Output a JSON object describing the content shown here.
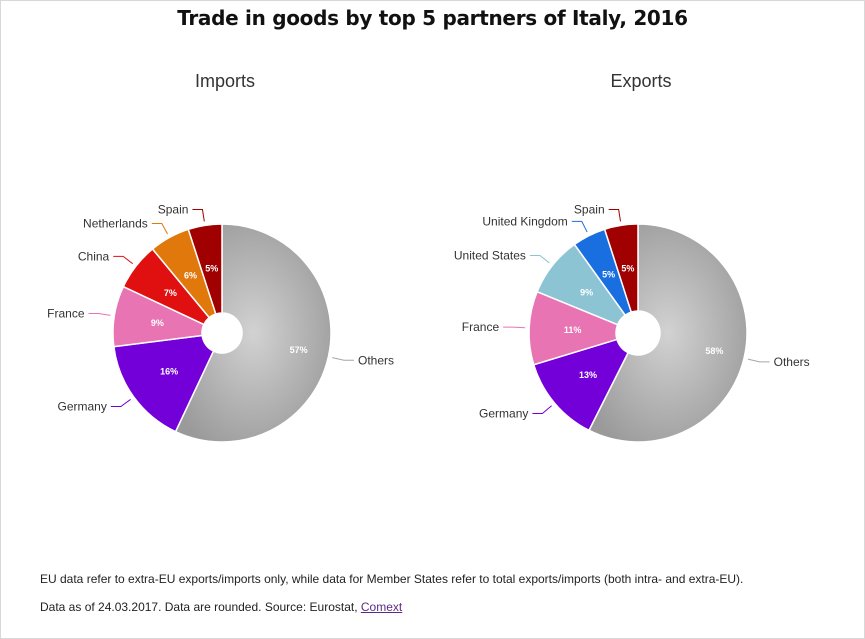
{
  "title": "Trade in goods by top 5 partners of Italy, 2016",
  "notes": {
    "line1": "EU data refer to extra-EU exports/imports only, while data for Member States refer to total exports/imports (both intra- and extra-EU).",
    "line2_prefix": "Data as of 24.03.2017. Data are rounded. Source: Eurostat, ",
    "link_text": "Comext"
  },
  "chart_data": [
    {
      "type": "pie",
      "variant": "donut",
      "title": "Imports",
      "unit": "%",
      "slices": [
        {
          "label": "Others",
          "value": 57,
          "color": "#a6a6a6"
        },
        {
          "label": "Germany",
          "value": 16,
          "color": "#7300d9"
        },
        {
          "label": "France",
          "value": 9,
          "color": "#e874b4"
        },
        {
          "label": "China",
          "value": 7,
          "color": "#e01010"
        },
        {
          "label": "Netherlands",
          "value": 6,
          "color": "#e0780c"
        },
        {
          "label": "Spain",
          "value": 5,
          "color": "#a00000"
        }
      ]
    },
    {
      "type": "pie",
      "variant": "donut",
      "title": "Exports",
      "unit": "%",
      "slices": [
        {
          "label": "Others",
          "value": 58,
          "color": "#a6a6a6"
        },
        {
          "label": "Germany",
          "value": 13,
          "color": "#7300d9"
        },
        {
          "label": "France",
          "value": 11,
          "color": "#e874b4"
        },
        {
          "label": "United States",
          "value": 9,
          "color": "#8cc4d4"
        },
        {
          "label": "United Kingdom",
          "value": 5,
          "color": "#1a6fe0"
        },
        {
          "label": "Spain",
          "value": 5,
          "color": "#a00000"
        }
      ]
    }
  ]
}
